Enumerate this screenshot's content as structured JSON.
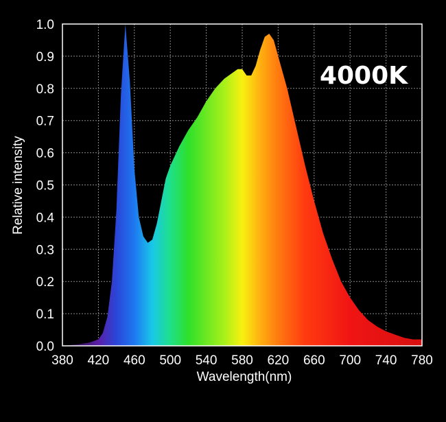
{
  "chart_data": {
    "type": "area",
    "title": "",
    "annotation": "4000K",
    "xlabel": "Wavelength(nm)",
    "ylabel": "Relative intensity",
    "xlim": [
      380,
      780
    ],
    "ylim": [
      0,
      1.0
    ],
    "grid": true,
    "legend": "none",
    "x_ticks": [
      380,
      420,
      460,
      500,
      540,
      580,
      620,
      660,
      700,
      740,
      780
    ],
    "x_tick_labels": [
      "380",
      "420",
      "460",
      "500",
      "540",
      "580",
      "620",
      "660",
      "700",
      "740",
      "780"
    ],
    "y_ticks": [
      0,
      0.1,
      0.2,
      0.3,
      0.4,
      0.5,
      0.6,
      0.7,
      0.8,
      0.9,
      1.0
    ],
    "y_tick_labels": [
      "0.0",
      "0.1",
      "0.2",
      "0.3",
      "0.4",
      "0.5",
      "0.6",
      "0.7",
      "0.8",
      "0.9",
      "1.0"
    ],
    "series": [
      {
        "x": [
          380,
          390,
          400,
          410,
          420,
          425,
          430,
          435,
          440,
          445,
          450,
          455,
          460,
          465,
          470,
          475,
          480,
          485,
          490,
          495,
          500,
          510,
          520,
          530,
          540,
          550,
          560,
          570,
          575,
          580,
          585,
          590,
          595,
          600,
          605,
          610,
          615,
          620,
          630,
          640,
          650,
          660,
          670,
          680,
          690,
          700,
          710,
          720,
          730,
          740,
          750,
          760,
          770,
          780
        ],
        "y": [
          0.0,
          0.003,
          0.006,
          0.01,
          0.02,
          0.04,
          0.09,
          0.2,
          0.42,
          0.78,
          1.0,
          0.82,
          0.55,
          0.4,
          0.34,
          0.32,
          0.33,
          0.38,
          0.45,
          0.52,
          0.56,
          0.62,
          0.67,
          0.71,
          0.76,
          0.8,
          0.83,
          0.85,
          0.86,
          0.86,
          0.84,
          0.84,
          0.87,
          0.92,
          0.96,
          0.97,
          0.95,
          0.9,
          0.8,
          0.68,
          0.56,
          0.45,
          0.35,
          0.27,
          0.2,
          0.15,
          0.11,
          0.08,
          0.06,
          0.045,
          0.035,
          0.025,
          0.02,
          0.02
        ]
      }
    ],
    "spectrum_colors": [
      {
        "nm": 380,
        "color": "#1a0a20"
      },
      {
        "nm": 420,
        "color": "#5a1ea8"
      },
      {
        "nm": 440,
        "color": "#2a46d8"
      },
      {
        "nm": 460,
        "color": "#1e78f0"
      },
      {
        "nm": 480,
        "color": "#19c8e8"
      },
      {
        "nm": 500,
        "color": "#1ee08a"
      },
      {
        "nm": 520,
        "color": "#2ee02a"
      },
      {
        "nm": 560,
        "color": "#a8f01a"
      },
      {
        "nm": 580,
        "color": "#f8f010"
      },
      {
        "nm": 600,
        "color": "#ffb010"
      },
      {
        "nm": 620,
        "color": "#ff7a10"
      },
      {
        "nm": 650,
        "color": "#ff3a10"
      },
      {
        "nm": 700,
        "color": "#f01414"
      },
      {
        "nm": 780,
        "color": "#d81010"
      }
    ],
    "grid_color": "#8a8a8a",
    "plot_background": "#000000",
    "text_color": "#ffffff"
  }
}
